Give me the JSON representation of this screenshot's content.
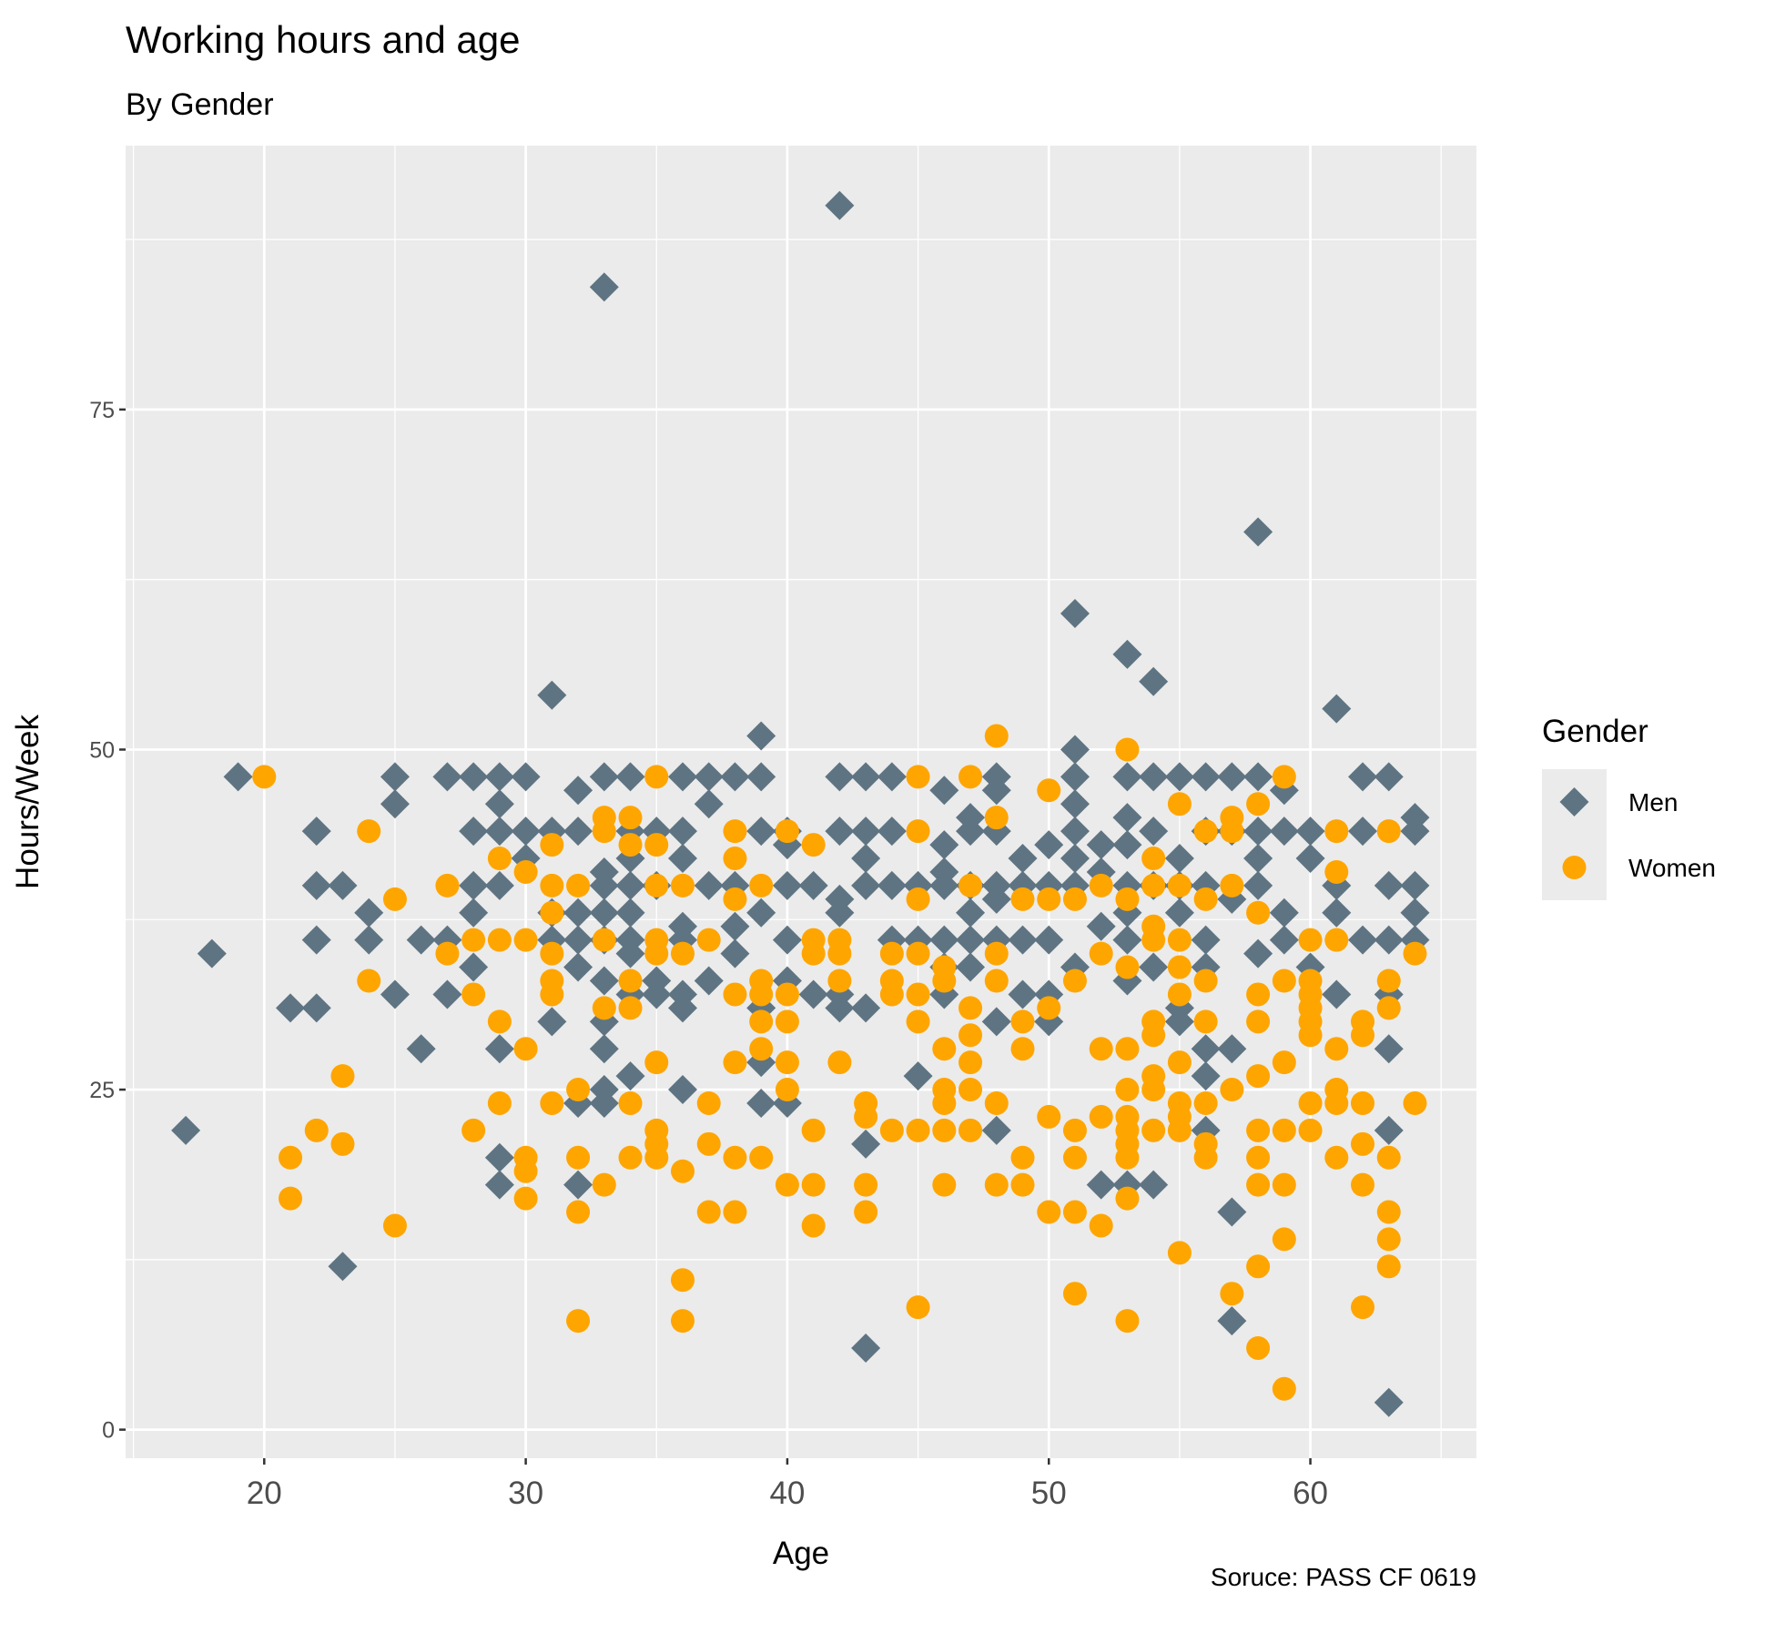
{
  "chart_data": {
    "type": "scatter",
    "title": "Working hours and age",
    "subtitle": "By Gender",
    "x_label": "Age",
    "y_label": "Hours/Week",
    "caption": "Soruce: PASS CF 0619",
    "legend_title": "Gender",
    "legend_position": "right",
    "grid": true,
    "background": "#ebebeb",
    "xlim": [
      14.7,
      66.35
    ],
    "ylim": [
      -2.1,
      94.4
    ],
    "xticks": [
      20,
      30,
      40,
      50,
      60
    ],
    "yticks": [
      0,
      25,
      50,
      75
    ],
    "xminor": [
      15,
      25,
      35,
      45,
      55,
      65
    ],
    "yminor": [
      12.5,
      37.5,
      62.5,
      87.5
    ],
    "series": [
      {
        "name": "Men",
        "color": "#5f7482",
        "shape": "diamond",
        "x": [
          17,
          18,
          19,
          21,
          22,
          22,
          22,
          22,
          23,
          23,
          24,
          24,
          25,
          25,
          25,
          26,
          26,
          27,
          27,
          27,
          28,
          28,
          28,
          28,
          28,
          29,
          29,
          29,
          29,
          29,
          29,
          29,
          30,
          30,
          30,
          31,
          31,
          31,
          31,
          31,
          32,
          32,
          32,
          32,
          32,
          32,
          32,
          33,
          33,
          33,
          33,
          33,
          33,
          33,
          33,
          33,
          33,
          33,
          34,
          34,
          34,
          34,
          34,
          34,
          34,
          34,
          34,
          35,
          35,
          35,
          35,
          36,
          36,
          36,
          36,
          36,
          36,
          36,
          36,
          37,
          37,
          37,
          37,
          38,
          38,
          38,
          38,
          39,
          39,
          39,
          39,
          39,
          39,
          39,
          40,
          40,
          40,
          40,
          40,
          40,
          41,
          41,
          42,
          42,
          42,
          42,
          42,
          42,
          42,
          43,
          43,
          43,
          43,
          43,
          43,
          43,
          44,
          44,
          44,
          44,
          45,
          45,
          45,
          46,
          46,
          46,
          46,
          46,
          46,
          46,
          47,
          47,
          47,
          47,
          47,
          47,
          48,
          48,
          48,
          48,
          48,
          48,
          48,
          48,
          49,
          49,
          49,
          49,
          50,
          50,
          50,
          50,
          50,
          51,
          51,
          51,
          51,
          51,
          51,
          51,
          51,
          52,
          52,
          52,
          52,
          53,
          53,
          53,
          53,
          53,
          53,
          53,
          53,
          53,
          54,
          54,
          54,
          54,
          54,
          54,
          55,
          55,
          55,
          55,
          55,
          55,
          56,
          56,
          56,
          56,
          56,
          56,
          56,
          56,
          57,
          57,
          57,
          57,
          57,
          57,
          58,
          58,
          58,
          58,
          58,
          58,
          59,
          59,
          59,
          59,
          60,
          60,
          60,
          61,
          61,
          61,
          61,
          62,
          62,
          62,
          63,
          63,
          63,
          63,
          63,
          63,
          63,
          64,
          64,
          64,
          64,
          64
        ],
        "values": [
          22,
          35,
          48,
          31,
          44,
          40,
          36,
          31,
          40,
          12,
          38,
          36,
          48,
          46,
          32,
          36,
          28,
          48,
          36,
          32,
          48,
          44,
          40,
          38,
          34,
          48,
          46,
          44,
          40,
          28,
          20,
          18,
          48,
          44,
          42,
          54,
          44,
          38,
          36,
          30,
          47,
          44,
          38,
          36,
          34,
          24,
          18,
          84,
          48,
          41,
          40,
          38,
          36,
          33,
          30,
          28,
          25,
          24,
          48,
          44,
          42,
          40,
          38,
          36,
          35,
          32,
          26,
          44,
          40,
          33,
          32,
          48,
          44,
          42,
          37,
          36,
          32,
          31,
          25,
          48,
          46,
          40,
          33,
          48,
          40,
          37,
          35,
          51,
          48,
          44,
          38,
          31,
          27,
          24,
          44,
          43,
          40,
          36,
          33,
          24,
          40,
          32,
          90,
          48,
          44,
          39,
          38,
          32,
          31,
          48,
          44,
          42,
          40,
          31,
          21,
          6,
          48,
          44,
          40,
          36,
          40,
          36,
          26,
          47,
          43,
          41,
          40,
          36,
          34,
          32,
          45,
          44,
          40,
          38,
          36,
          34,
          48,
          47,
          44,
          40,
          39,
          36,
          30,
          22,
          42,
          40,
          36,
          32,
          43,
          40,
          36,
          32,
          30,
          60,
          50,
          48,
          46,
          44,
          42,
          40,
          34,
          43,
          41,
          37,
          18,
          57,
          48,
          45,
          43,
          40,
          38,
          36,
          33,
          18,
          55,
          48,
          44,
          40,
          34,
          18,
          48,
          42,
          40,
          38,
          31,
          30,
          48,
          44,
          40,
          36,
          34,
          28,
          26,
          22,
          48,
          44,
          39,
          28,
          16,
          8,
          66,
          48,
          44,
          42,
          40,
          35,
          47,
          44,
          38,
          36,
          44,
          42,
          34,
          53,
          40,
          38,
          32,
          48,
          44,
          36,
          48,
          40,
          36,
          32,
          28,
          22,
          2,
          45,
          44,
          40,
          38,
          36
        ]
      },
      {
        "name": "Women",
        "color": "#ffa500",
        "shape": "circle",
        "x": [
          20,
          21,
          21,
          22,
          23,
          23,
          24,
          24,
          25,
          25,
          27,
          27,
          28,
          28,
          28,
          29,
          29,
          29,
          29,
          30,
          30,
          30,
          30,
          30,
          30,
          31,
          31,
          31,
          31,
          31,
          31,
          31,
          32,
          32,
          32,
          32,
          32,
          33,
          33,
          33,
          33,
          33,
          34,
          34,
          34,
          34,
          34,
          34,
          35,
          35,
          35,
          35,
          35,
          35,
          35,
          35,
          35,
          36,
          36,
          36,
          36,
          36,
          37,
          37,
          37,
          37,
          38,
          38,
          38,
          38,
          38,
          38,
          38,
          39,
          39,
          39,
          39,
          39,
          39,
          40,
          40,
          40,
          40,
          40,
          40,
          41,
          41,
          41,
          41,
          41,
          41,
          42,
          42,
          42,
          42,
          43,
          43,
          43,
          43,
          44,
          44,
          44,
          44,
          45,
          45,
          45,
          45,
          45,
          45,
          45,
          45,
          46,
          46,
          46,
          46,
          46,
          46,
          46,
          47,
          47,
          47,
          47,
          47,
          47,
          47,
          48,
          48,
          48,
          48,
          48,
          48,
          49,
          49,
          49,
          49,
          49,
          50,
          50,
          50,
          50,
          50,
          51,
          51,
          51,
          51,
          51,
          51,
          52,
          52,
          52,
          52,
          52,
          53,
          53,
          53,
          53,
          53,
          53,
          53,
          53,
          53,
          53,
          53,
          54,
          54,
          54,
          54,
          54,
          54,
          54,
          54,
          54,
          55,
          55,
          55,
          55,
          55,
          55,
          55,
          55,
          55,
          55,
          56,
          56,
          56,
          56,
          56,
          56,
          56,
          57,
          57,
          57,
          57,
          57,
          58,
          58,
          58,
          58,
          58,
          58,
          58,
          58,
          58,
          58,
          59,
          59,
          59,
          59,
          59,
          59,
          59,
          60,
          60,
          60,
          60,
          60,
          60,
          60,
          60,
          61,
          61,
          61,
          61,
          61,
          61,
          61,
          62,
          62,
          62,
          62,
          62,
          62,
          63,
          63,
          63,
          63,
          63,
          63,
          63,
          64,
          64
        ],
        "values": [
          48,
          20,
          17,
          22,
          26,
          21,
          44,
          33,
          39,
          15,
          40,
          35,
          36,
          32,
          22,
          42,
          36,
          30,
          24,
          41,
          36,
          28,
          20,
          19,
          17,
          43,
          40,
          38,
          35,
          33,
          32,
          24,
          40,
          25,
          20,
          16,
          8,
          45,
          44,
          36,
          31,
          18,
          45,
          43,
          33,
          31,
          24,
          20,
          48,
          43,
          40,
          36,
          35,
          27,
          22,
          21,
          20,
          40,
          35,
          19,
          11,
          8,
          36,
          24,
          21,
          16,
          44,
          42,
          39,
          32,
          27,
          20,
          16,
          40,
          33,
          32,
          30,
          28,
          20,
          44,
          32,
          30,
          27,
          25,
          18,
          43,
          36,
          35,
          22,
          18,
          15,
          36,
          35,
          33,
          27,
          24,
          23,
          18,
          16,
          35,
          33,
          32,
          22,
          48,
          44,
          39,
          35,
          32,
          30,
          22,
          9,
          34,
          33,
          28,
          25,
          24,
          22,
          18,
          48,
          40,
          31,
          29,
          27,
          25,
          22,
          51,
          45,
          35,
          33,
          24,
          18,
          39,
          30,
          28,
          20,
          18,
          47,
          39,
          31,
          23,
          16,
          39,
          33,
          22,
          20,
          16,
          10,
          40,
          35,
          28,
          23,
          15,
          50,
          39,
          34,
          28,
          25,
          23,
          22,
          21,
          20,
          17,
          8,
          42,
          40,
          37,
          36,
          30,
          29,
          26,
          25,
          22,
          46,
          40,
          36,
          34,
          32,
          27,
          24,
          23,
          22,
          13,
          44,
          39,
          33,
          30,
          24,
          21,
          20,
          45,
          44,
          40,
          25,
          10,
          46,
          38,
          32,
          30,
          26,
          22,
          20,
          18,
          12,
          6,
          48,
          33,
          27,
          22,
          18,
          14,
          3,
          36,
          33,
          32,
          31,
          30,
          29,
          24,
          22,
          44,
          41,
          36,
          28,
          25,
          24,
          20,
          30,
          29,
          24,
          21,
          18,
          9,
          44,
          33,
          31,
          20,
          16,
          14,
          12,
          35,
          24
        ]
      }
    ]
  }
}
